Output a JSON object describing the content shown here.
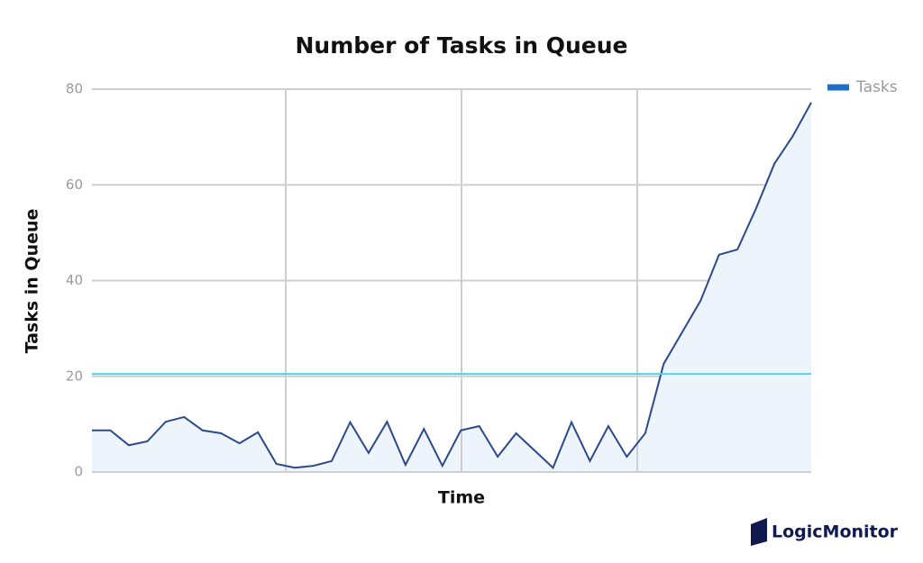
{
  "brand": "LogicMonitor",
  "chart_data": {
    "type": "line",
    "title": "Number of Tasks in Queue",
    "xlabel": "Time",
    "ylabel": "Tasks in Queue",
    "categories": [
      null,
      null,
      null,
      null,
      null,
      null,
      null,
      null,
      null,
      null,
      null,
      null,
      null,
      null,
      null,
      null,
      null,
      null,
      null,
      null,
      null,
      null,
      null,
      null,
      null,
      null,
      null,
      null,
      null,
      null,
      null,
      null,
      null,
      null,
      null,
      null,
      null,
      null,
      null,
      null
    ],
    "series": [
      {
        "name": "Tasks",
        "color": "#2b4a8b",
        "legend_color": "#1f6fc5",
        "fill": "#eef4fc",
        "values": [
          8.7,
          8.7,
          5.6,
          6.4,
          10.5,
          11.5,
          8.7,
          8.1,
          6.0,
          8.3,
          1.7,
          0.9,
          1.3,
          2.3,
          10.4,
          4.0,
          10.5,
          1.5,
          9.0,
          1.3,
          8.7,
          9.6,
          3.2,
          8.1,
          4.5,
          0.9,
          10.4,
          2.3,
          9.6,
          3.2,
          8.1,
          22.6,
          29.2,
          35.8,
          45.4,
          46.5,
          55.0,
          64.4,
          70.2,
          77.2
        ]
      }
    ],
    "threshold": 20.5,
    "threshold_color": "#4fd4ef",
    "ylim": [
      0,
      80
    ],
    "yticks": [
      0,
      20,
      40,
      60,
      80
    ],
    "grid": true,
    "legend": "top-right"
  }
}
